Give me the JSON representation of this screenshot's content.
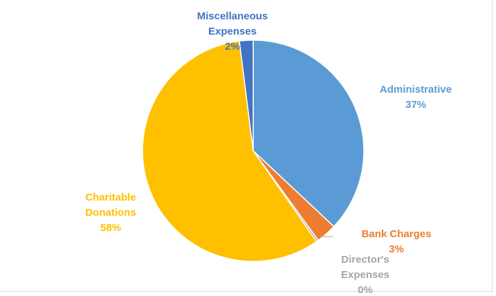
{
  "chart_data": {
    "type": "pie",
    "title": "",
    "legend": "none",
    "slices": [
      {
        "name": "Administrative",
        "label_lines": [
          "Administrative"
        ],
        "pct_label": "37%",
        "value": 37,
        "color": "#5b9bd5"
      },
      {
        "name": "Bank Charges",
        "label_lines": [
          "Bank Charges"
        ],
        "pct_label": "3%",
        "value": 3,
        "color": "#ed7d31"
      },
      {
        "name": "Director's Expenses",
        "label_lines": [
          "Director's",
          "Expenses"
        ],
        "pct_label": "0%",
        "value": 0.3,
        "color": "#a5a5a5"
      },
      {
        "name": "Charitable Donations",
        "label_lines": [
          "Charitable",
          "Donations"
        ],
        "pct_label": "58%",
        "value": 57.7,
        "color": "#ffc000"
      },
      {
        "name": "Miscellaneous Expenses",
        "label_lines": [
          "Miscellaneous",
          "Expenses"
        ],
        "pct_label": "2%",
        "value": 2,
        "color": "#4472c4"
      }
    ]
  }
}
